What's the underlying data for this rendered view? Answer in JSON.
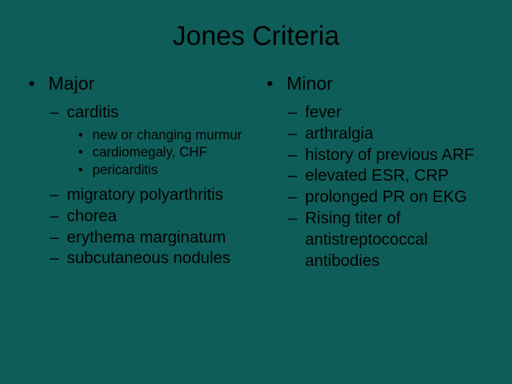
{
  "colors": {
    "background": "#0e5d58",
    "text": "#000000"
  },
  "typography": {
    "title_fontsize": 38,
    "level1_fontsize": 26,
    "level2_fontsize": 23,
    "level3_fontsize": 19,
    "font_family": "Arial"
  },
  "bullets": {
    "level1": "•",
    "level2": "–",
    "level3": "•"
  },
  "title": "Jones Criteria",
  "left": {
    "heading": "Major",
    "items": [
      {
        "label": "carditis",
        "sub": [
          "new or changing murmur",
          "cardiomegaly, CHF",
          "pericarditis"
        ]
      },
      {
        "label": "migratory polyarthritis"
      },
      {
        "label": "chorea"
      },
      {
        "label": "erythema marginatum"
      },
      {
        "label": "subcutaneous nodules"
      }
    ]
  },
  "right": {
    "heading": "Minor",
    "items": [
      {
        "label": "fever"
      },
      {
        "label": "arthralgia"
      },
      {
        "label": "history of previous ARF"
      },
      {
        "label": "elevated ESR, CRP"
      },
      {
        "label": "prolonged PR on EKG"
      },
      {
        "label": "Rising titer of antistreptococcal antibodies"
      }
    ]
  }
}
